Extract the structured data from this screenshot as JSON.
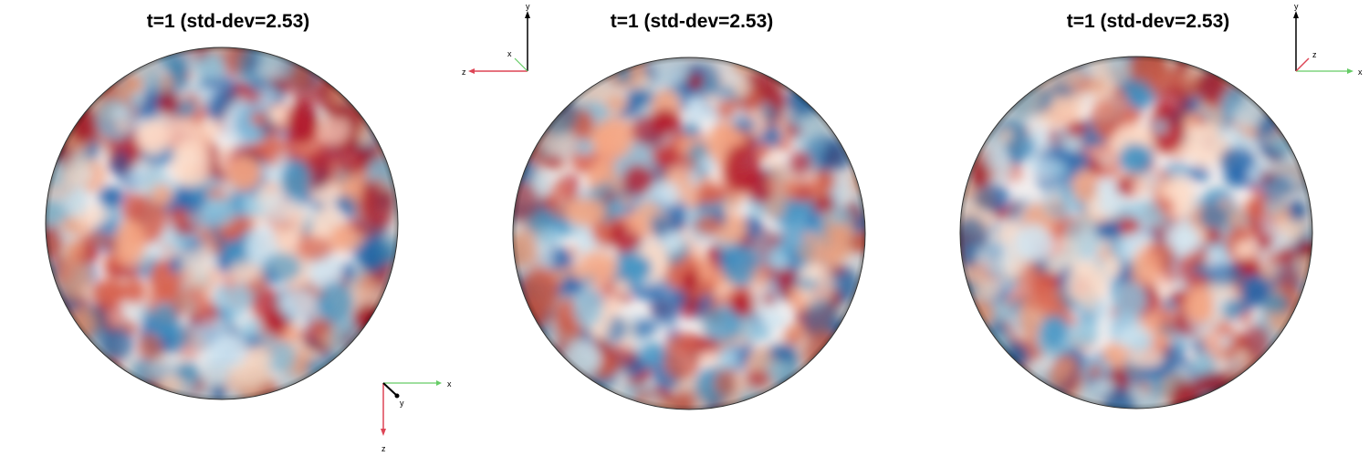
{
  "panels": [
    {
      "title": "t=1  (std-dev=2.53)",
      "axes": {
        "x": "x",
        "y": "y",
        "z": "z"
      }
    },
    {
      "title": "t=1  (std-dev=2.53)",
      "axes": {
        "x": "x",
        "y": "y",
        "z": "z"
      }
    },
    {
      "title": "t=1  (std-dev=2.53)",
      "axes": {
        "x": "x",
        "y": "y",
        "z": "z"
      }
    }
  ]
}
